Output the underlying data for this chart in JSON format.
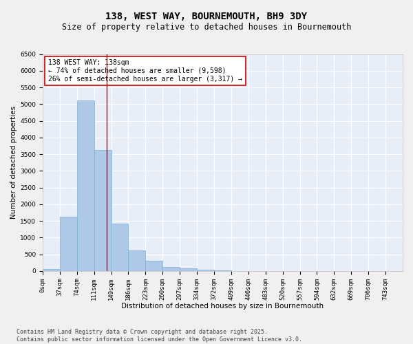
{
  "title_line1": "138, WEST WAY, BOURNEMOUTH, BH9 3DY",
  "title_line2": "Size of property relative to detached houses in Bournemouth",
  "xlabel": "Distribution of detached houses by size in Bournemouth",
  "ylabel": "Number of detached properties",
  "bar_color": "#aec8e8",
  "bar_edge_color": "#7aaed6",
  "background_color": "#e8eef8",
  "grid_color": "#ffffff",
  "fig_background": "#f0f0f0",
  "categories": [
    "0sqm",
    "37sqm",
    "74sqm",
    "111sqm",
    "149sqm",
    "186sqm",
    "223sqm",
    "260sqm",
    "297sqm",
    "334sqm",
    "372sqm",
    "409sqm",
    "446sqm",
    "483sqm",
    "520sqm",
    "557sqm",
    "594sqm",
    "632sqm",
    "669sqm",
    "706sqm",
    "743sqm"
  ],
  "values": [
    65,
    1620,
    5100,
    3620,
    1420,
    610,
    305,
    130,
    75,
    40,
    20,
    0,
    0,
    0,
    0,
    0,
    0,
    0,
    0,
    0,
    0
  ],
  "vline_color": "#cc0000",
  "annotation_text": "138 WEST WAY: 138sqm\n← 74% of detached houses are smaller (9,598)\n26% of semi-detached houses are larger (3,317) →",
  "annotation_box_color": "#ffffff",
  "annotation_box_edge_color": "#cc0000",
  "ylim": [
    0,
    6500
  ],
  "yticks": [
    0,
    500,
    1000,
    1500,
    2000,
    2500,
    3000,
    3500,
    4000,
    4500,
    5000,
    5500,
    6000,
    6500
  ],
  "footer_line1": "Contains HM Land Registry data © Crown copyright and database right 2025.",
  "footer_line2": "Contains public sector information licensed under the Open Government Licence v3.0.",
  "title_fontsize": 10,
  "subtitle_fontsize": 8.5,
  "axis_label_fontsize": 7.5,
  "tick_fontsize": 6.5,
  "annotation_fontsize": 7,
  "footer_fontsize": 6
}
